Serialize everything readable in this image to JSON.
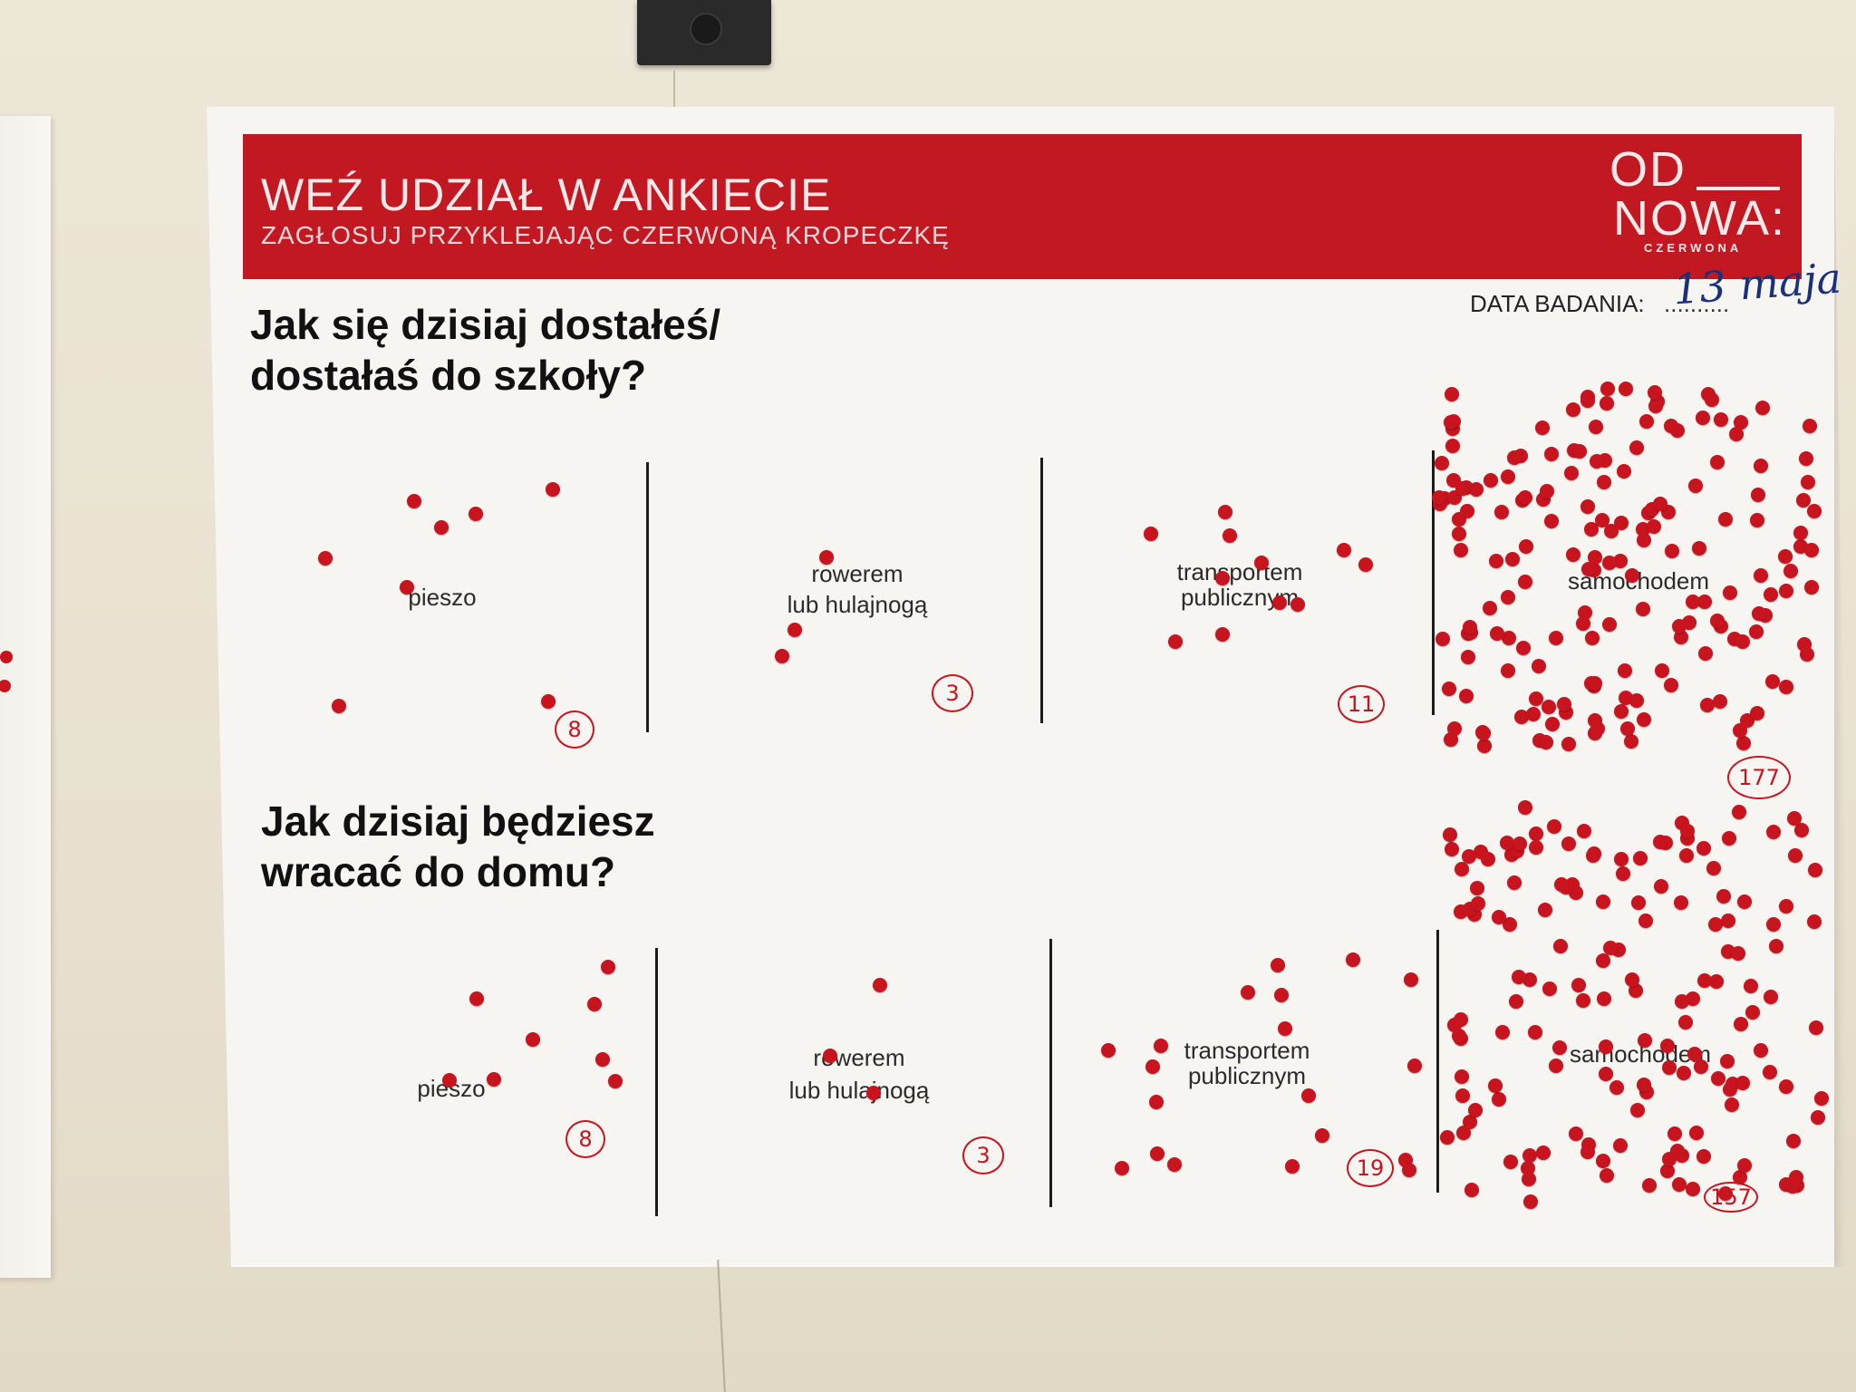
{
  "poster": {
    "banner_title": "WEŹ UDZIAŁ W ANKIECIE",
    "banner_subtitle": "ZAGŁOSUJ PRZYKLEJAJĄC CZERWONĄ KROPECZKĘ",
    "logo_line1": "OD",
    "logo_line2": "NOWA:",
    "logo_small": "CZERWONA",
    "date_label": "DATA BADANIA:",
    "date_dots": "..........",
    "date_value": "13 maja"
  },
  "questions": [
    {
      "title_line1": "Jak się dzisiaj dostałeś/",
      "title_line2": "dostałaś do szkoły?",
      "options": [
        {
          "label_line1": "pieszo",
          "label_line2": "",
          "count": "8",
          "dot_count": 8
        },
        {
          "label_line1": "rowerem",
          "label_line2": "lub hulajnogą",
          "count": "3",
          "dot_count": 3
        },
        {
          "label_line1": "transportem",
          "label_line2": "publicznym",
          "count": "11",
          "dot_count": 11
        },
        {
          "label_line1": "samochodem",
          "label_line2": "",
          "count": "177",
          "dot_count": 177
        }
      ]
    },
    {
      "title_line1": "Jak dzisiaj będziesz",
      "title_line2": "wracać do domu?",
      "options": [
        {
          "label_line1": "pieszo",
          "label_line2": "",
          "count": "8",
          "dot_count": 8
        },
        {
          "label_line1": "rowerem",
          "label_line2": "lub hulajnogą",
          "count": "3",
          "dot_count": 3
        },
        {
          "label_line1": "transportem",
          "label_line2": "publicznym",
          "count": "19",
          "dot_count": 19
        },
        {
          "label_line1": "samochodem",
          "label_line2": "",
          "count": "157",
          "dot_count": 157
        }
      ]
    }
  ],
  "colors": {
    "accent": "#c21822",
    "dot": "#c8141e",
    "ink_blue": "#1c2f7a"
  }
}
